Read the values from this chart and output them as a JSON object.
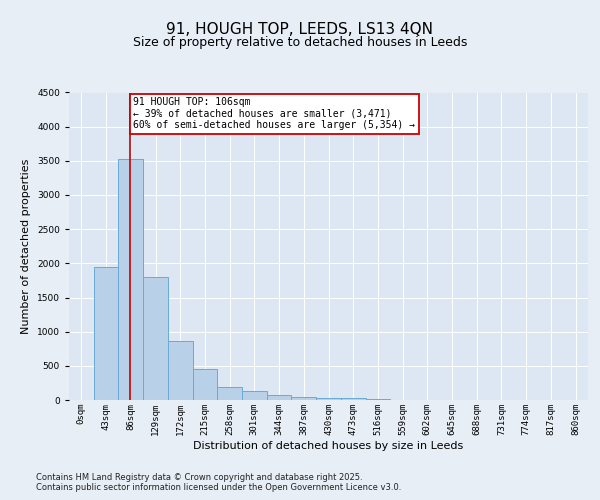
{
  "title_line1": "91, HOUGH TOP, LEEDS, LS13 4QN",
  "title_line2": "Size of property relative to detached houses in Leeds",
  "xlabel": "Distribution of detached houses by size in Leeds",
  "ylabel": "Number of detached properties",
  "bar_labels": [
    "0sqm",
    "43sqm",
    "86sqm",
    "129sqm",
    "172sqm",
    "215sqm",
    "258sqm",
    "301sqm",
    "344sqm",
    "387sqm",
    "430sqm",
    "473sqm",
    "516sqm",
    "559sqm",
    "602sqm",
    "645sqm",
    "688sqm",
    "731sqm",
    "774sqm",
    "817sqm",
    "860sqm"
  ],
  "bar_values": [
    5,
    1950,
    3520,
    1800,
    870,
    460,
    195,
    130,
    75,
    50,
    30,
    25,
    10,
    5,
    2,
    0,
    0,
    0,
    0,
    0,
    0
  ],
  "bar_color": "#b8d0e8",
  "bar_edge_color": "#6aaad4",
  "vline_x": 2.45,
  "vline_color": "#cc0000",
  "annotation_text": "91 HOUGH TOP: 106sqm\n← 39% of detached houses are smaller (3,471)\n60% of semi-detached houses are larger (5,354) →",
  "annotation_box_facecolor": "#ffffff",
  "annotation_box_edgecolor": "#cc0000",
  "ylim": [
    0,
    4500
  ],
  "yticks": [
    0,
    500,
    1000,
    1500,
    2000,
    2500,
    3000,
    3500,
    4000,
    4500
  ],
  "footnote1": "Contains HM Land Registry data © Crown copyright and database right 2025.",
  "footnote2": "Contains public sector information licensed under the Open Government Licence v3.0.",
  "fig_facecolor": "#e8eef5",
  "plot_facecolor": "#dce7f3",
  "grid_color": "#ffffff",
  "title_fontsize": 11,
  "subtitle_fontsize": 9,
  "tick_fontsize": 6.5,
  "label_fontsize": 8,
  "footnote_fontsize": 6,
  "annot_fontsize": 7
}
